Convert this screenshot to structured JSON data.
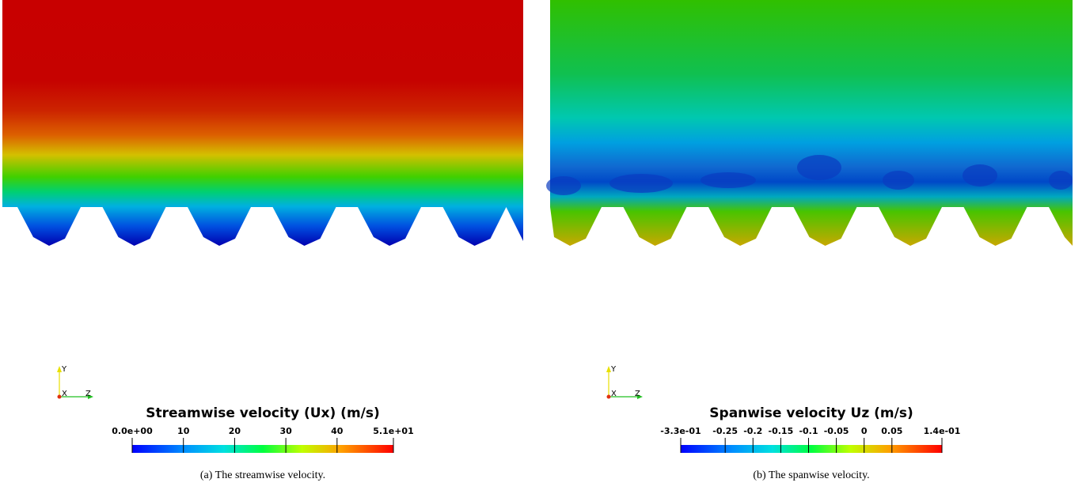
{
  "panels": [
    {
      "colorbar": {
        "title": "Streamwise velocity (Ux) (m/s)",
        "ticks": [
          {
            "value": 0,
            "label": "0.0e+00"
          },
          10,
          20,
          30,
          40,
          {
            "value": 51,
            "label": "5.1e+01"
          }
        ]
      },
      "axes": {
        "y": "Y",
        "x": "X",
        "z": "Z"
      },
      "caption": "(a) The streamwise velocity."
    },
    {
      "colorbar": {
        "title": "Spanwise velocity Uz (m/s)",
        "ticks": [
          {
            "value": -0.33,
            "label": "-3.3e-01"
          },
          -0.25,
          -0.2,
          -0.15,
          -0.1,
          -0.05,
          0,
          0.05,
          {
            "value": 0.14,
            "label": "1.4e-01"
          }
        ]
      },
      "axes": {
        "y": "Y",
        "x": "X",
        "z": "Z"
      },
      "caption": "(b) The spanwise velocity."
    }
  ]
}
